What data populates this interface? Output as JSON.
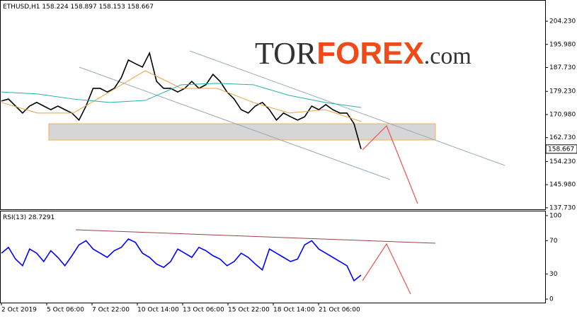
{
  "chart_data": {
    "type": "line",
    "symbol": "ETHUSD,H1",
    "ohlc": [
      158.224,
      158.897,
      158.153,
      158.667
    ],
    "logo": {
      "part1": "TOR",
      "part2": "FOREX",
      "part3": ".com"
    },
    "xticks": [
      "2 Oct 2019",
      "5 Oct 06:00",
      "7 Oct 22:00",
      "10 Oct 14:00",
      "13 Oct 06:00",
      "15 Oct 22:00",
      "18 Oct 14:00",
      "21 Oct 06:00"
    ],
    "ylim": [
      137.2,
      211.8
    ],
    "yticks": [
      {
        "value": 204.23,
        "label": "204.230"
      },
      {
        "value": 195.98,
        "label": "195.980"
      },
      {
        "value": 187.73,
        "label": "187.730"
      },
      {
        "value": 179.23,
        "label": "179.230"
      },
      {
        "value": 170.98,
        "label": "170.980"
      },
      {
        "value": 162.73,
        "label": "162.730"
      },
      {
        "value": 154.23,
        "label": "154.230"
      },
      {
        "value": 145.98,
        "label": "145.980"
      },
      {
        "value": 137.73,
        "label": "137.730"
      }
    ],
    "last_price": 158.667,
    "series": [
      {
        "name": "price",
        "color": "#000000",
        "values": [
          175.8,
          176.5,
          174.0,
          171.5,
          174.0,
          175.3,
          174.0,
          172.7,
          174.0,
          172.7,
          171.5,
          169.0,
          174.0,
          180.3,
          180.3,
          179.0,
          180.3,
          184.1,
          190.4,
          189.1,
          187.9,
          192.9,
          182.8,
          180.3,
          180.3,
          179.0,
          180.3,
          182.8,
          180.3,
          181.6,
          185.3,
          182.8,
          179.0,
          176.5,
          172.7,
          171.5,
          174.0,
          175.3,
          172.7,
          169.0,
          171.5,
          170.2,
          169.0,
          170.2,
          174.0,
          172.7,
          174.5,
          172.7,
          171.5,
          171.5,
          167.7,
          158.667
        ]
      },
      {
        "name": "ma-fast",
        "color": "#e8a33d",
        "values": [
          175.3,
          171.5,
          171.5,
          179.0,
          186.6,
          180.3,
          180.3,
          175.3,
          171.5,
          172.7,
          168.5
        ]
      },
      {
        "name": "ma-slow",
        "color": "#20b2aa",
        "values": [
          179.0,
          178.3,
          176.5,
          175.3,
          176.0,
          181.6,
          182.1,
          181.6,
          177.8,
          175.3,
          173.5
        ]
      }
    ],
    "rsi": {
      "label": "RSI(13)",
      "value": 28.7291,
      "color": "#0000ff",
      "ylim": [
        0,
        100
      ],
      "yticks": [
        100,
        70,
        30,
        0
      ],
      "values": [
        55,
        62,
        48,
        40,
        60,
        55,
        45,
        58,
        50,
        40,
        52,
        65,
        70,
        60,
        55,
        50,
        58,
        62,
        72,
        68,
        55,
        50,
        42,
        38,
        45,
        60,
        55,
        50,
        62,
        58,
        52,
        48,
        40,
        45,
        55,
        50,
        42,
        35,
        60,
        55,
        50,
        45,
        48,
        65,
        70,
        60,
        55,
        50,
        45,
        40,
        22,
        28.7291
      ]
    }
  }
}
